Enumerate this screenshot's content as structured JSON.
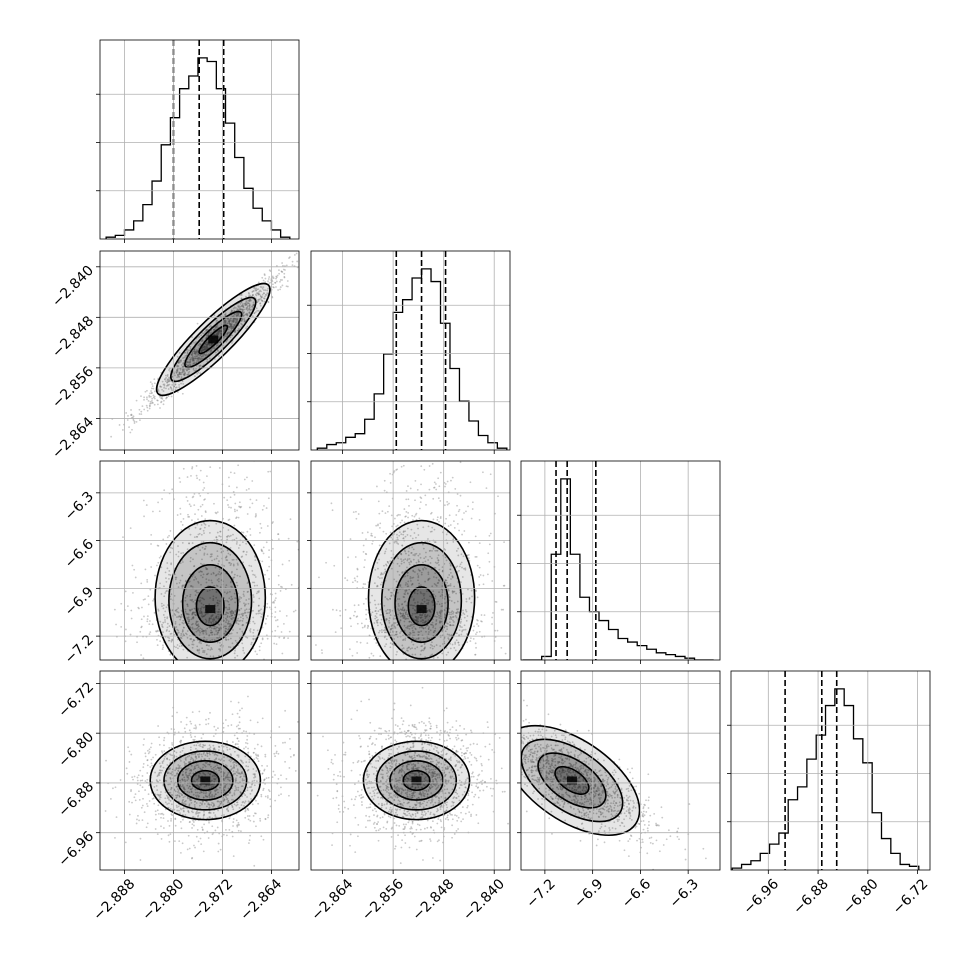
{
  "chart_data": {
    "type": "scatter",
    "title": "",
    "grid": true,
    "n_params": 4,
    "params": [
      {
        "index": 0,
        "range": [
          -2.892,
          -2.8595
        ],
        "ticks": [
          -2.888,
          -2.88,
          -2.872,
          -2.864
        ],
        "tick_labels": [
          "−2.888",
          "−2.880",
          "−2.872",
          "−2.864"
        ],
        "quantiles": [
          -2.88,
          -2.8758,
          -2.8718
        ]
      },
      {
        "index": 1,
        "range": [
          -2.869,
          -2.8375
        ],
        "ticks": [
          -2.864,
          -2.856,
          -2.848,
          -2.84
        ],
        "tick_labels": [
          "−2.864",
          "−2.856",
          "−2.848",
          "−2.840"
        ],
        "quantiles": [
          -2.8555,
          -2.8515,
          -2.8477
        ]
      },
      {
        "index": 2,
        "range": [
          -7.35,
          -6.1
        ],
        "ticks": [
          -7.2,
          -6.9,
          -6.6,
          -6.3
        ],
        "tick_labels": [
          "−7.2",
          "−6.9",
          "−6.6",
          "−6.3"
        ],
        "quantiles": [
          -7.13,
          -7.06,
          -6.88
        ]
      },
      {
        "index": 3,
        "range": [
          -7.02,
          -6.7
        ],
        "ticks": [
          -6.96,
          -6.88,
          -6.8,
          -6.72
        ],
        "tick_labels": [
          "−6.96",
          "−6.88",
          "−6.80",
          "−6.72"
        ],
        "quantiles": [
          -6.933,
          -6.874,
          -6.85
        ]
      }
    ],
    "histograms": [
      {
        "param": 0,
        "edges": [
          -2.891,
          -2.8895,
          -2.888,
          -2.8865,
          -2.885,
          -2.8835,
          -2.882,
          -2.8805,
          -2.879,
          -2.8775,
          -2.876,
          -2.8745,
          -2.873,
          -2.8715,
          -2.87,
          -2.8685,
          -2.867,
          -2.8655,
          -2.864,
          -2.8625,
          -2.861
        ],
        "counts": [
          1,
          2,
          5,
          10,
          19,
          32,
          52,
          67,
          83,
          90,
          100,
          98,
          83,
          64,
          45,
          28,
          17,
          10,
          5,
          1
        ]
      },
      {
        "param": 1,
        "edges": [
          -2.868,
          -2.8665,
          -2.865,
          -2.8635,
          -2.862,
          -2.8605,
          -2.859,
          -2.8575,
          -2.856,
          -2.8545,
          -2.853,
          -2.8515,
          -2.85,
          -2.8485,
          -2.847,
          -2.8455,
          -2.844,
          -2.8425,
          -2.841,
          -2.8395,
          -2.838
        ],
        "counts": [
          1,
          3,
          4,
          7,
          9,
          17,
          31,
          53,
          76,
          83,
          95,
          100,
          93,
          70,
          45,
          27,
          16,
          8,
          4,
          1
        ]
      },
      {
        "param": 2,
        "edges": [
          -7.34,
          -7.28,
          -7.22,
          -7.16,
          -7.1,
          -7.04,
          -6.98,
          -6.92,
          -6.86,
          -6.8,
          -6.74,
          -6.68,
          -6.62,
          -6.56,
          -6.5,
          -6.44,
          -6.38,
          -6.32,
          -6.26,
          -6.2,
          -6.14
        ],
        "counts": [
          0,
          0,
          2,
          59,
          101,
          59,
          35,
          27,
          22,
          17,
          12,
          10,
          8,
          6,
          4,
          3,
          2,
          1,
          0,
          0
        ]
      },
      {
        "param": 3,
        "edges": [
          -7.018,
          -7.003,
          -6.988,
          -6.973,
          -6.958,
          -6.943,
          -6.928,
          -6.913,
          -6.898,
          -6.883,
          -6.868,
          -6.853,
          -6.838,
          -6.823,
          -6.808,
          -6.793,
          -6.778,
          -6.763,
          -6.748,
          -6.733,
          -6.718
        ],
        "counts": [
          1,
          3,
          5,
          9,
          14,
          20,
          38,
          45,
          60,
          73,
          89,
          98,
          89,
          71,
          58,
          31,
          17,
          9,
          3,
          2
        ]
      }
    ],
    "pairs": [
      {
        "x_param": 0,
        "y_param": 1,
        "center": [
          -2.8735,
          -2.8515
        ],
        "spread": [
          0.0045,
          0.0043
        ],
        "corr": 0.97
      },
      {
        "x_param": 0,
        "y_param": 2,
        "center": [
          -2.874,
          -7.03
        ],
        "spread": [
          0.0045,
          0.2
        ],
        "corr": 0.05
      },
      {
        "x_param": 1,
        "y_param": 2,
        "center": [
          -2.8515,
          -7.03
        ],
        "spread": [
          0.0042,
          0.2
        ],
        "corr": 0.05
      },
      {
        "x_param": 0,
        "y_param": 3,
        "center": [
          -2.8748,
          -6.876
        ],
        "spread": [
          0.0045,
          0.035
        ],
        "corr": 0.05
      },
      {
        "x_param": 1,
        "y_param": 3,
        "center": [
          -2.8523,
          -6.876
        ],
        "spread": [
          0.0042,
          0.035
        ],
        "corr": 0.05
      },
      {
        "x_param": 2,
        "y_param": 3,
        "center": [
          -7.03,
          -6.876
        ],
        "spread": [
          0.2,
          0.035
        ],
        "corr": -0.75
      }
    ],
    "colors": {
      "line": "#000000",
      "grid": "#b0b0b0",
      "points": "#888888",
      "density": "#000000"
    }
  }
}
